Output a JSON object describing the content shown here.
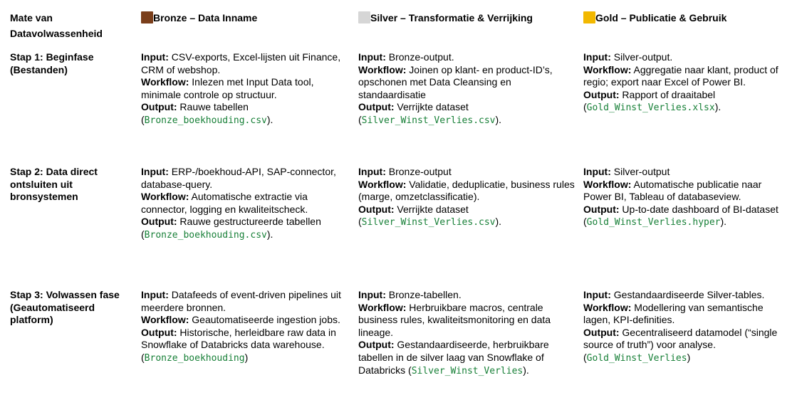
{
  "header": {
    "col0": "Mate van Datavolwassenheid",
    "columns": [
      {
        "label": "Bronze – Data Inname",
        "swatch": "#7a3e1a",
        "icon": "brown-square-icon"
      },
      {
        "label": "Silver – Transformatie & Verrijking",
        "swatch": "#d6d6d6",
        "icon": "white-square-icon"
      },
      {
        "label": "Gold – Publicatie & Gebruik",
        "swatch": "#f2b800",
        "icon": "yellow-square-icon"
      }
    ]
  },
  "colors": {
    "code": "#188038"
  },
  "rows": [
    {
      "stage": "Stap 1: Beginfase (Bestanden)",
      "cells": [
        [
          {
            "label": "Input:",
            "text": " CSV-exports, Excel-lijsten uit Finance, CRM of webshop."
          },
          {
            "label": "Workflow:",
            "text": " Inlezen met Input Data tool, minimale controle op structuur."
          },
          {
            "label": "Output:",
            "text": " Rauwe tabellen (",
            "code": "Bronze_boekhouding.csv",
            "after": ")."
          }
        ],
        [
          {
            "label": "Input:",
            "text": " Bronze-output."
          },
          {
            "label": "Workflow:",
            "text": " Joinen op klant- en product-ID’s, opschonen met Data Cleansing en standaardisatie"
          },
          {
            "label": "Output:",
            "text": " Verrijkte dataset (",
            "code": "Silver_Winst_Verlies.csv",
            "after": ")."
          }
        ],
        [
          {
            "label": "Input:",
            "text": " Silver-output."
          },
          {
            "label": "Workflow:",
            "text": " Aggregatie naar klant, product of regio; export naar Excel of Power BI."
          },
          {
            "label": "Output:",
            "text": " Rapport of draaitabel (",
            "code": "Gold_Winst_Verlies.xlsx",
            "after": ")."
          }
        ]
      ]
    },
    {
      "stage": "Stap 2: Data direct ontsluiten uit bronsystemen",
      "cells": [
        [
          {
            "label": "Input:",
            "text": " ERP-/boekhoud-API, SAP-connector, database-query."
          },
          {
            "label": "Workflow:",
            "text": " Automatische extractie via connector, logging en kwaliteitscheck."
          },
          {
            "label": "Output:",
            "text": " Rauwe gestructureerde tabellen (",
            "code": "Bronze_boekhouding.csv",
            "after": ")."
          }
        ],
        [
          {
            "label": "Input:",
            "text": " Bronze-output"
          },
          {
            "label": "Workflow:",
            "text": " Validatie, deduplicatie, business rules (marge, omzetclassificatie)."
          },
          {
            "label": "Output:",
            "text": " Verrijkte dataset (",
            "code": "Silver_Winst_Verlies.csv",
            "after": ")."
          }
        ],
        [
          {
            "label": "Input:",
            "text": " Silver-output"
          },
          {
            "label": "Workflow:",
            "text": " Automatische publicatie naar Power BI, Tableau of databaseview."
          },
          {
            "label": "Output:",
            "text": " Up-to-date dashboard of BI-dataset (",
            "code": "Gold_Winst_Verlies.hyper",
            "after": ")."
          }
        ]
      ]
    },
    {
      "stage": "Stap 3: Volwassen fase (Geautomatiseerd platform)",
      "cells": [
        [
          {
            "label": "Input:",
            "text": " Datafeeds of event-driven pipelines uit meerdere bronnen."
          },
          {
            "label": "Workflow:",
            "text": " Geautomatiseerde ingestion jobs."
          },
          {
            "label": "Output:",
            "text": " Historische, herleidbare raw data in Snowflake of Databricks data warehouse. (",
            "code": "Bronze_boekhouding",
            "after": ")"
          }
        ],
        [
          {
            "label": "Input:",
            "text": " Bronze-tabellen."
          },
          {
            "label": "Workflow:",
            "text": " Herbruikbare macros, centrale business rules, kwaliteitsmonitoring en data lineage."
          },
          {
            "label": "Output:",
            "text": " Gestandaardiseerde, herbruikbare tabellen in de silver laag van Snowflake of Databricks (",
            "code": "Silver_Winst_Verlies",
            "after": ")."
          }
        ],
        [
          {
            "label": "Input:",
            "text": " Gestandaardiseerde Silver-tables."
          },
          {
            "label": "Workflow:",
            "text": " Modellering van semantische lagen, KPI-definities."
          },
          {
            "label": "Output:",
            "text": " Gecentraliseerd datamodel (“single source of truth”) voor analyse. (",
            "code": "Gold_Winst_Verlies",
            "after": ")"
          }
        ]
      ]
    }
  ]
}
